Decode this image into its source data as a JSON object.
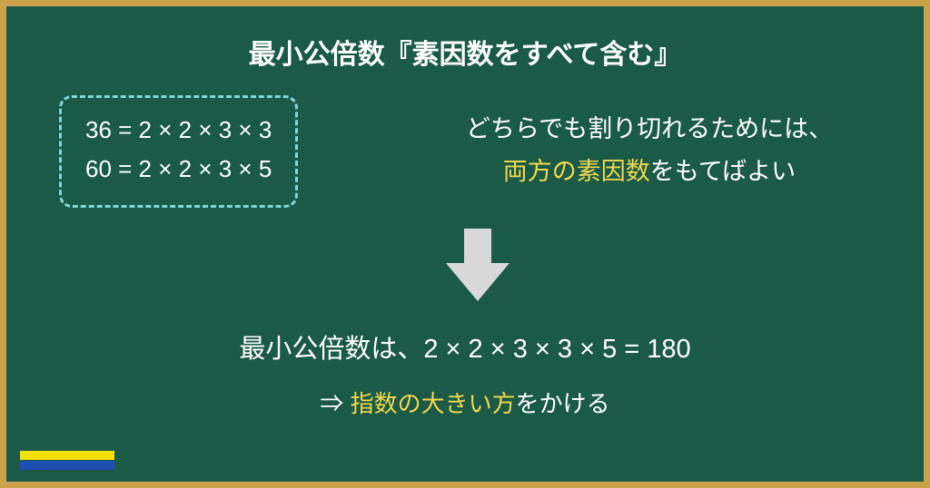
{
  "colors": {
    "frame": "#c9a24a",
    "board": "#1a5a46",
    "white": "#ffffff",
    "accent": "#f2d94e",
    "boxBorder": "#7fd9d9",
    "arrow": "#d9d9d9",
    "markerYellow": "#f5e100",
    "markerBlue": "#1e4db3"
  },
  "typography": {
    "titleSize": 30,
    "bodySize": 27,
    "factorSize": 26,
    "lcmSize": 29,
    "hintSize": 26
  },
  "title": {
    "pre": "最小公倍数",
    "bracketed": "『素因数をすべて含む』"
  },
  "factors": {
    "line1": "36 = 2 × 2 × 3 × 3",
    "line2": "60 = 2 × 2 × 3 × 5"
  },
  "explain": {
    "line1": "どちらでも割り切れるためには、",
    "line2a": "両方の素因数",
    "line2b": "をもてばよい"
  },
  "lcm": {
    "label": "最小公倍数は、",
    "expr": "2 × 2 × 3 × 3 × 5 = 180"
  },
  "hint": {
    "arrow": "⇒ ",
    "accent": "指数の大きい方",
    "tail": "をかける"
  },
  "arrow": {
    "width": 70,
    "height": 80
  }
}
